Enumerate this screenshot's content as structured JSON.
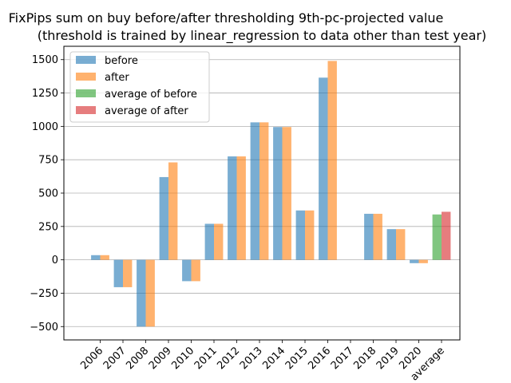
{
  "chart_data": {
    "type": "bar",
    "title": "FixPips sum on buy before/after thresholding 9th-pc-projected value",
    "subtitle": "(threshold is trained by linear_regression to data other than test year)",
    "xlabel": "",
    "ylabel": "",
    "categories": [
      "2006",
      "2007",
      "2008",
      "2009",
      "2010",
      "2011",
      "2012",
      "2013",
      "2014",
      "2015",
      "2016",
      "2017",
      "2018",
      "2019",
      "2020",
      "average"
    ],
    "series": [
      {
        "name": "before",
        "color": "#1f77b4",
        "values": [
          35,
          -205,
          -500,
          620,
          -160,
          270,
          775,
          1030,
          995,
          370,
          1365,
          0,
          345,
          230,
          -25,
          null
        ]
      },
      {
        "name": "after",
        "color": "#ff7f0e",
        "values": [
          35,
          -205,
          -500,
          730,
          -160,
          270,
          775,
          1030,
          995,
          370,
          1490,
          0,
          345,
          230,
          -25,
          null
        ]
      },
      {
        "name": "average of before",
        "color": "#2ca02c",
        "values": [
          null,
          null,
          null,
          null,
          null,
          null,
          null,
          null,
          null,
          null,
          null,
          null,
          null,
          null,
          null,
          340
        ]
      },
      {
        "name": "average of after",
        "color": "#d62728",
        "values": [
          null,
          null,
          null,
          null,
          null,
          null,
          null,
          null,
          null,
          null,
          null,
          null,
          null,
          null,
          null,
          360
        ]
      }
    ],
    "ylim": [
      -600,
      1600
    ],
    "yticks": [
      -500,
      -250,
      0,
      250,
      500,
      750,
      1000,
      1250,
      1500
    ],
    "ytick_labels": [
      "−500",
      "−250",
      "0",
      "250",
      "500",
      "750",
      "1000",
      "1250",
      "1500"
    ],
    "grid": "y",
    "legend_position": "top-left",
    "bar_alpha": 0.6
  }
}
